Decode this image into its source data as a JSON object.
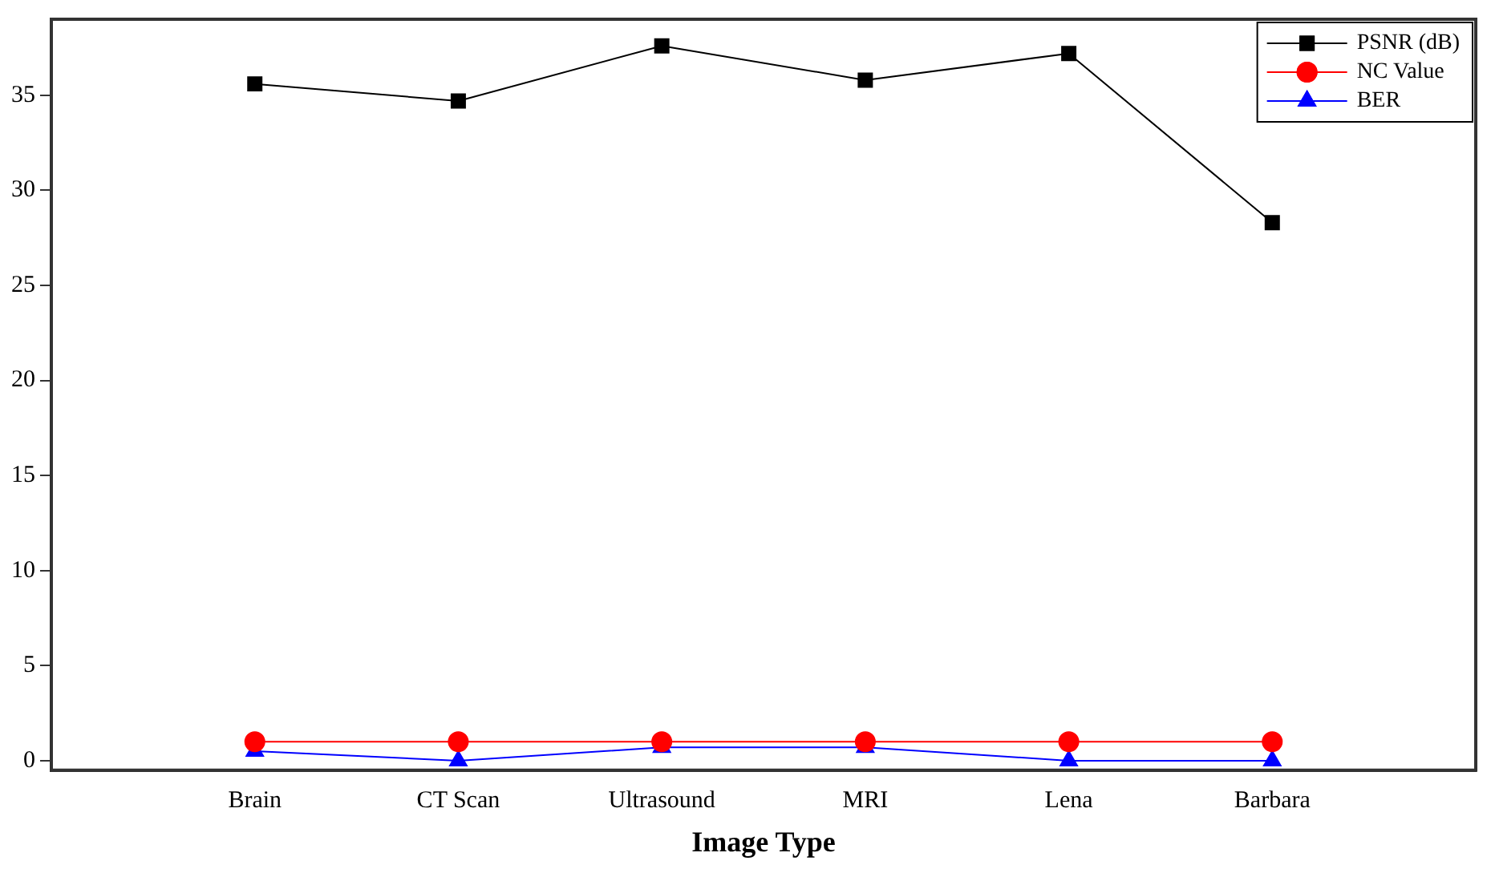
{
  "chart_data": {
    "type": "line",
    "xlabel": "Image Type",
    "categories": [
      "Brain",
      "CT Scan",
      "Ultrasound",
      "MRI",
      "Lena",
      "Barbara"
    ],
    "series": [
      {
        "name": "PSNR (dB)",
        "color": "#000000",
        "marker": "square",
        "values": [
          35.6,
          34.7,
          37.6,
          35.8,
          37.2,
          28.3
        ]
      },
      {
        "name": "NC Value",
        "color": "#ff0000",
        "marker": "circle",
        "values": [
          1,
          1,
          1,
          1,
          1,
          1
        ]
      },
      {
        "name": "BER",
        "color": "#0000ff",
        "marker": "triangle",
        "values": [
          0.5,
          0,
          0.7,
          0.7,
          0,
          0
        ]
      }
    ],
    "ylim": [
      -0.5,
      39
    ],
    "yticks": [
      0,
      5,
      10,
      15,
      20,
      25,
      30,
      35
    ],
    "grid": false,
    "legend": "top right",
    "line_style": "solid"
  }
}
